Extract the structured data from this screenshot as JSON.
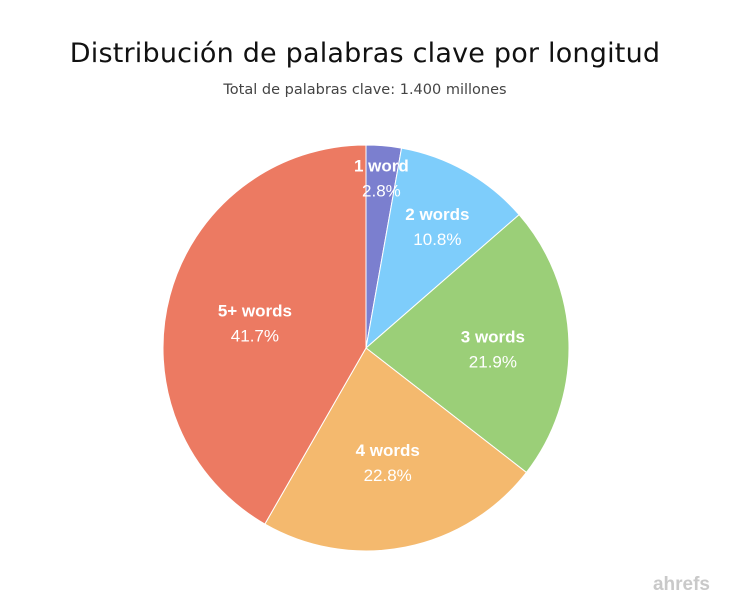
{
  "chart_data": {
    "type": "pie",
    "title": "Distribución de palabras clave por longitud",
    "subtitle": "Total de palabras clave: 1.400 millones",
    "slices": [
      {
        "label": "1 word",
        "value": 2.8,
        "pct_text": "2.8%",
        "color": "#7b7fcf"
      },
      {
        "label": "2 words",
        "value": 10.8,
        "pct_text": "10.8%",
        "color": "#7ecdfb"
      },
      {
        "label": "3 words",
        "value": 21.9,
        "pct_text": "21.9%",
        "color": "#9bcf78"
      },
      {
        "label": "4 words",
        "value": 22.8,
        "pct_text": "22.8%",
        "color": "#f4b96e"
      },
      {
        "label": "5+ words",
        "value": 41.7,
        "pct_text": "41.7%",
        "color": "#ec7a62"
      }
    ],
    "start_angle": "12 o'clock",
    "direction": "clockwise",
    "legend": "none"
  },
  "watermark": "ahrefs"
}
